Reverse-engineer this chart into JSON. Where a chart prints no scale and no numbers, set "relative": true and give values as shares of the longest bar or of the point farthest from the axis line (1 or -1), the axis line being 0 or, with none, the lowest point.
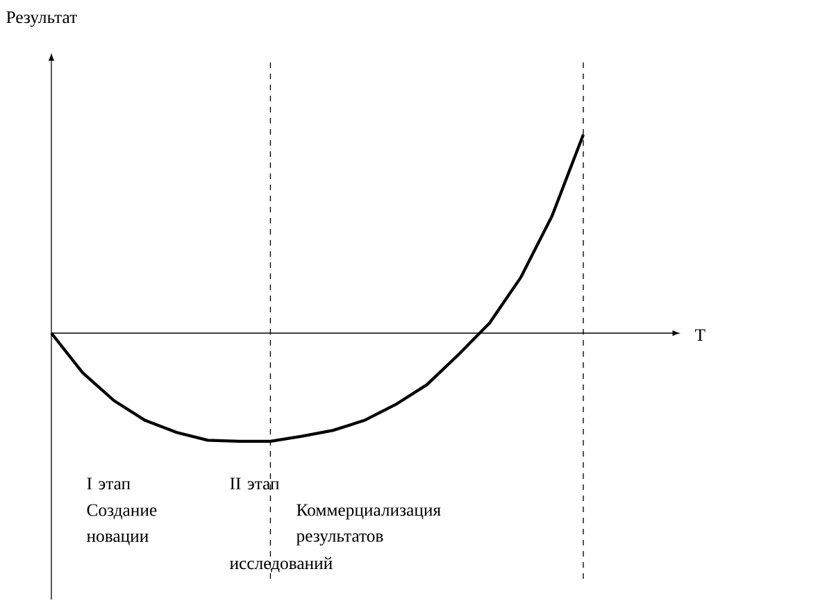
{
  "chart_data": {
    "type": "line",
    "relative": true,
    "categories": [
      null,
      null,
      null,
      null,
      null,
      null,
      null,
      null,
      null,
      null,
      null,
      null,
      null,
      null,
      null,
      null,
      null,
      null
    ],
    "values": [
      0,
      -0.2,
      -0.34,
      -0.44,
      -0.5,
      -0.54,
      -0.545,
      -0.545,
      -0.52,
      -0.49,
      -0.44,
      -0.36,
      -0.26,
      -0.11,
      0.05,
      0.28,
      0.59,
      1.0
    ],
    "color": "#000000",
    "line_style": "solid",
    "annotations": [
      "Результат",
      "T",
      "I этап",
      "Создание новации",
      "II этап",
      "Коммерциализация результатов",
      "исследований"
    ]
  }
}
